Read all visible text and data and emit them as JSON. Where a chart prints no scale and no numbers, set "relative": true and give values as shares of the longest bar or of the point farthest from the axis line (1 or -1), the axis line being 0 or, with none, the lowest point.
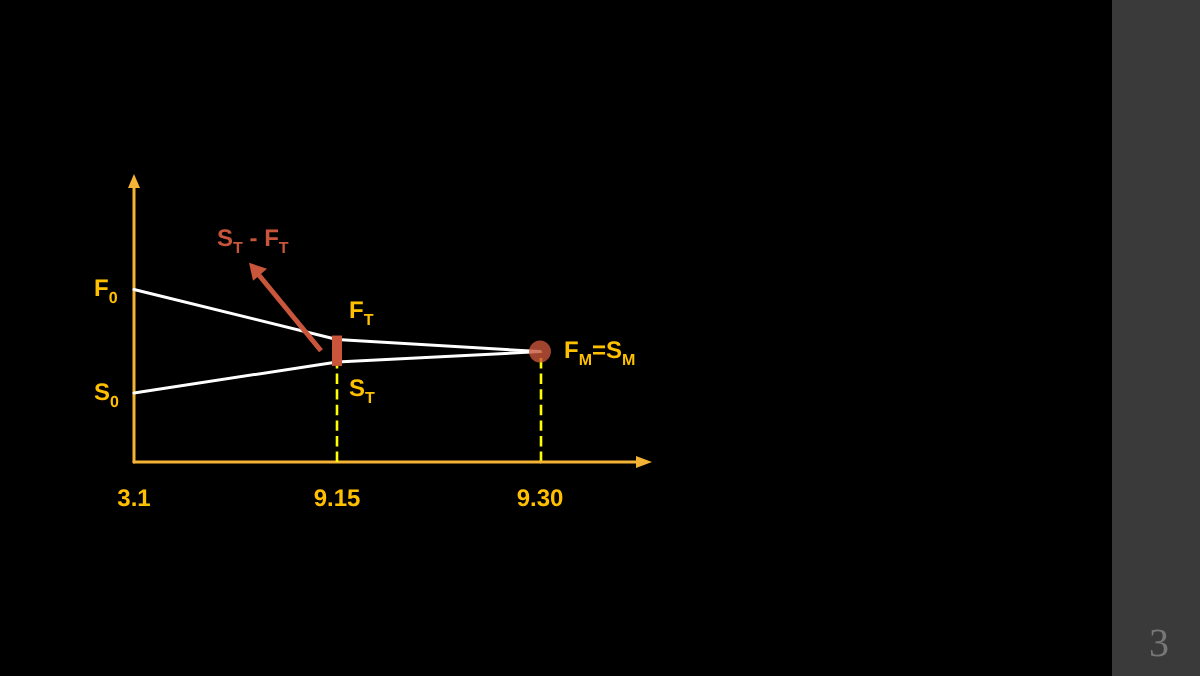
{
  "chart_data": {
    "type": "line",
    "relative": true,
    "categories": [
      "3.1",
      "9.15",
      "9.30"
    ],
    "series": [
      {
        "color": "#ffffff",
        "values": [
          1,
          0.71,
          0.64
        ]
      },
      {
        "color": "#ffffff",
        "values": [
          0.4,
          0.58,
          0.64
        ]
      },
      {
        "type": "scatter",
        "color": "#c9553b",
        "marker": "circle",
        "x": [
          "9.30"
        ],
        "values": [
          0.64
        ]
      }
    ],
    "marker": "none",
    "ref_lines": [
      {
        "axis": "x",
        "value": "9.15",
        "color": "#ffff00",
        "line_style": "dashed"
      },
      {
        "axis": "x",
        "value": "9.30",
        "color": "#ffff00",
        "line_style": "dashed"
      }
    ],
    "annotations": [
      {
        "text": "F$_{0}$",
        "x": "3.1",
        "y": 1
      },
      {
        "text": "S$_{0}$",
        "x": "3.1",
        "y": 0.4
      },
      {
        "text": "F$_{T}$",
        "x": "9.15",
        "y": 0.71
      },
      {
        "text": "S$_{T}$",
        "x": "9.15",
        "y": 0.58
      },
      {
        "text": "F$_{M}$=S$_{M}$",
        "x": "9.30",
        "y": 0.64
      },
      {
        "text": "S$_{T}$ - F$_{T}$",
        "x": "9.15",
        "y": 0.645
      },
      "3"
    ]
  }
}
